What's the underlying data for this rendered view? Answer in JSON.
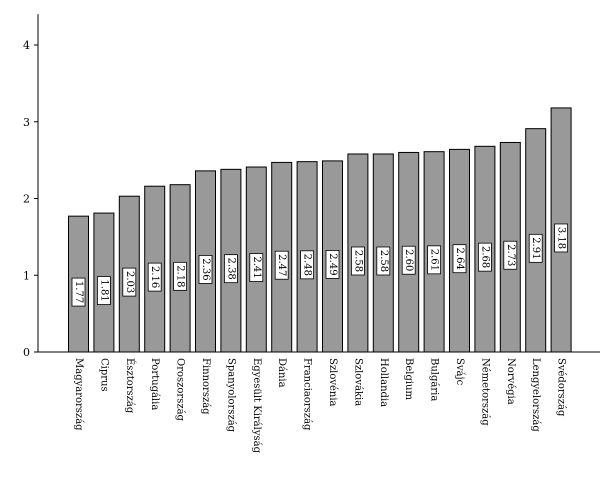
{
  "chart_data": {
    "type": "bar",
    "title": "",
    "xlabel": "",
    "ylabel": "",
    "ylim": [
      0,
      4.4
    ],
    "yticks": [
      0,
      1,
      2,
      3,
      4
    ],
    "grid": false,
    "bar_color": "#999999",
    "label_box_color": "#ffffff",
    "categories": [
      "Magyarország",
      "Ciprus",
      "Észtország",
      "Portugália",
      "Oroszország",
      "Finnország",
      "Spanyolország",
      "Egyesült Királyság",
      "Dánia",
      "Franciaország",
      "Szlovénia",
      "Szlovákia",
      "Hollandia",
      "Belgium",
      "Bulgária",
      "Svájc",
      "Németország",
      "Norvégia",
      "Lengyelország",
      "Svédország"
    ],
    "values": [
      1.77,
      1.81,
      2.03,
      2.16,
      2.18,
      2.36,
      2.38,
      2.41,
      2.47,
      2.48,
      2.49,
      2.58,
      2.58,
      2.6,
      2.61,
      2.64,
      2.68,
      2.73,
      2.91,
      3.18
    ],
    "value_labels": [
      "1.77",
      "1.81",
      "2.03",
      "2.16",
      "2.18",
      "2.36",
      "2.38",
      "2.41",
      "2.47",
      "2.48",
      "2.49",
      "2.58",
      "2.58",
      "2.60",
      "2.61",
      "2.64",
      "2.68",
      "2.73",
      "2.91",
      "3.18"
    ]
  }
}
